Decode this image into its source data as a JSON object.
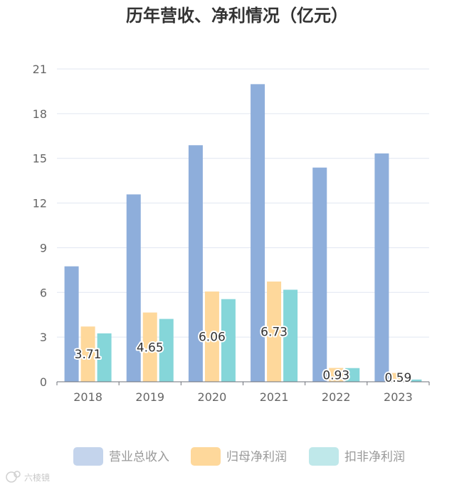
{
  "chart_data": {
    "type": "bar",
    "title": "历年营收、净利情况（亿元）",
    "categories": [
      "2018",
      "2019",
      "2020",
      "2021",
      "2022",
      "2023"
    ],
    "ylim": [
      0,
      21
    ],
    "yticks": [
      0,
      3,
      6,
      9,
      12,
      15,
      18,
      21
    ],
    "grid": true,
    "legend_position": "bottom",
    "series": [
      {
        "name": "营业总收入",
        "values": [
          7.75,
          12.58,
          15.88,
          19.98,
          14.38,
          15.33
        ]
      },
      {
        "name": "归母净利润",
        "values": [
          3.71,
          4.65,
          6.06,
          6.73,
          0.93,
          0.59
        ]
      },
      {
        "name": "扣非净利润",
        "values": [
          3.25,
          4.22,
          5.55,
          6.18,
          0.92,
          0.15
        ]
      }
    ],
    "data_labels": {
      "series": "归母净利润",
      "texts": [
        "3.71",
        "4.65",
        "6.06",
        "6.73",
        "0.93",
        "0.59"
      ]
    },
    "colors": [
      "#8eaedb",
      "#fed89b",
      "#85d6d9"
    ],
    "legend_colors": [
      "#c4d4ec",
      "#fed89b",
      "#bfe8ea"
    ]
  },
  "watermark": "六棱镜"
}
